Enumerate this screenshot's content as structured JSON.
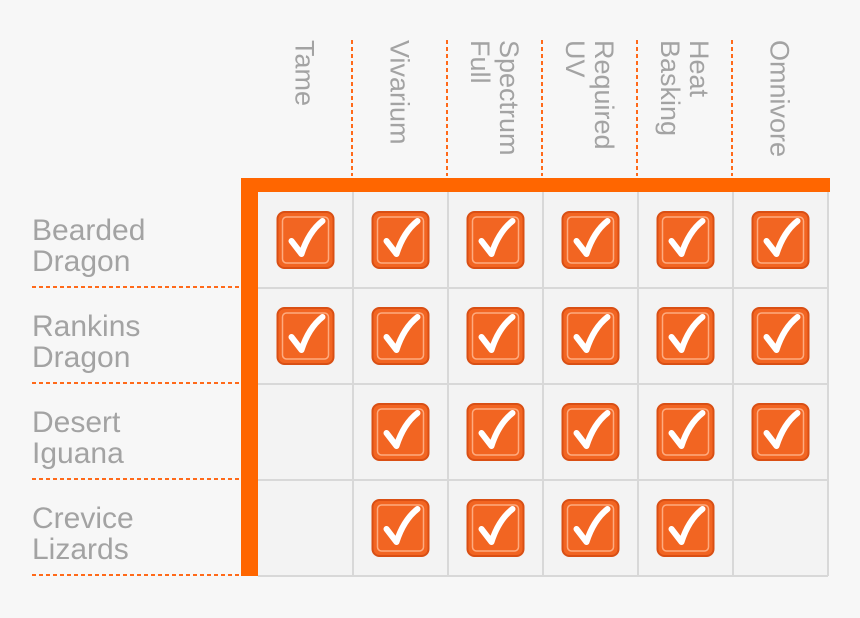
{
  "chart_data": {
    "type": "table",
    "title": "",
    "columns": [
      {
        "lines": [
          "Tame"
        ]
      },
      {
        "lines": [
          "Vivarium"
        ]
      },
      {
        "lines": [
          "Full",
          "Spectrum"
        ]
      },
      {
        "lines": [
          "UV",
          "Required"
        ]
      },
      {
        "lines": [
          "Basking",
          "Heat"
        ]
      },
      {
        "lines": [
          "Omnivore"
        ]
      }
    ],
    "rows": [
      {
        "lines": [
          "Bearded",
          "Dragon"
        ],
        "values": [
          true,
          true,
          true,
          true,
          true,
          true
        ]
      },
      {
        "lines": [
          "Rankins",
          "Dragon"
        ],
        "values": [
          true,
          true,
          true,
          true,
          true,
          true
        ]
      },
      {
        "lines": [
          "Desert",
          "Iguana"
        ],
        "values": [
          false,
          true,
          true,
          true,
          true,
          true
        ]
      },
      {
        "lines": [
          "Crevice",
          "Lizards"
        ],
        "values": [
          false,
          true,
          true,
          true,
          true,
          false
        ]
      }
    ]
  },
  "colors": {
    "accent": "#ff6600",
    "check_fill": "#f26522",
    "check_border": "#d94f14",
    "check_mark": "#ffffff",
    "label_text": "#a3a3a3",
    "grid_line": "#d8d8d8",
    "dotted_line": "#ff6a1a",
    "cell_bg": "#f3f3f3",
    "page_bg": "#f7f7f7"
  },
  "icons": {
    "check": "checkmark-icon"
  }
}
